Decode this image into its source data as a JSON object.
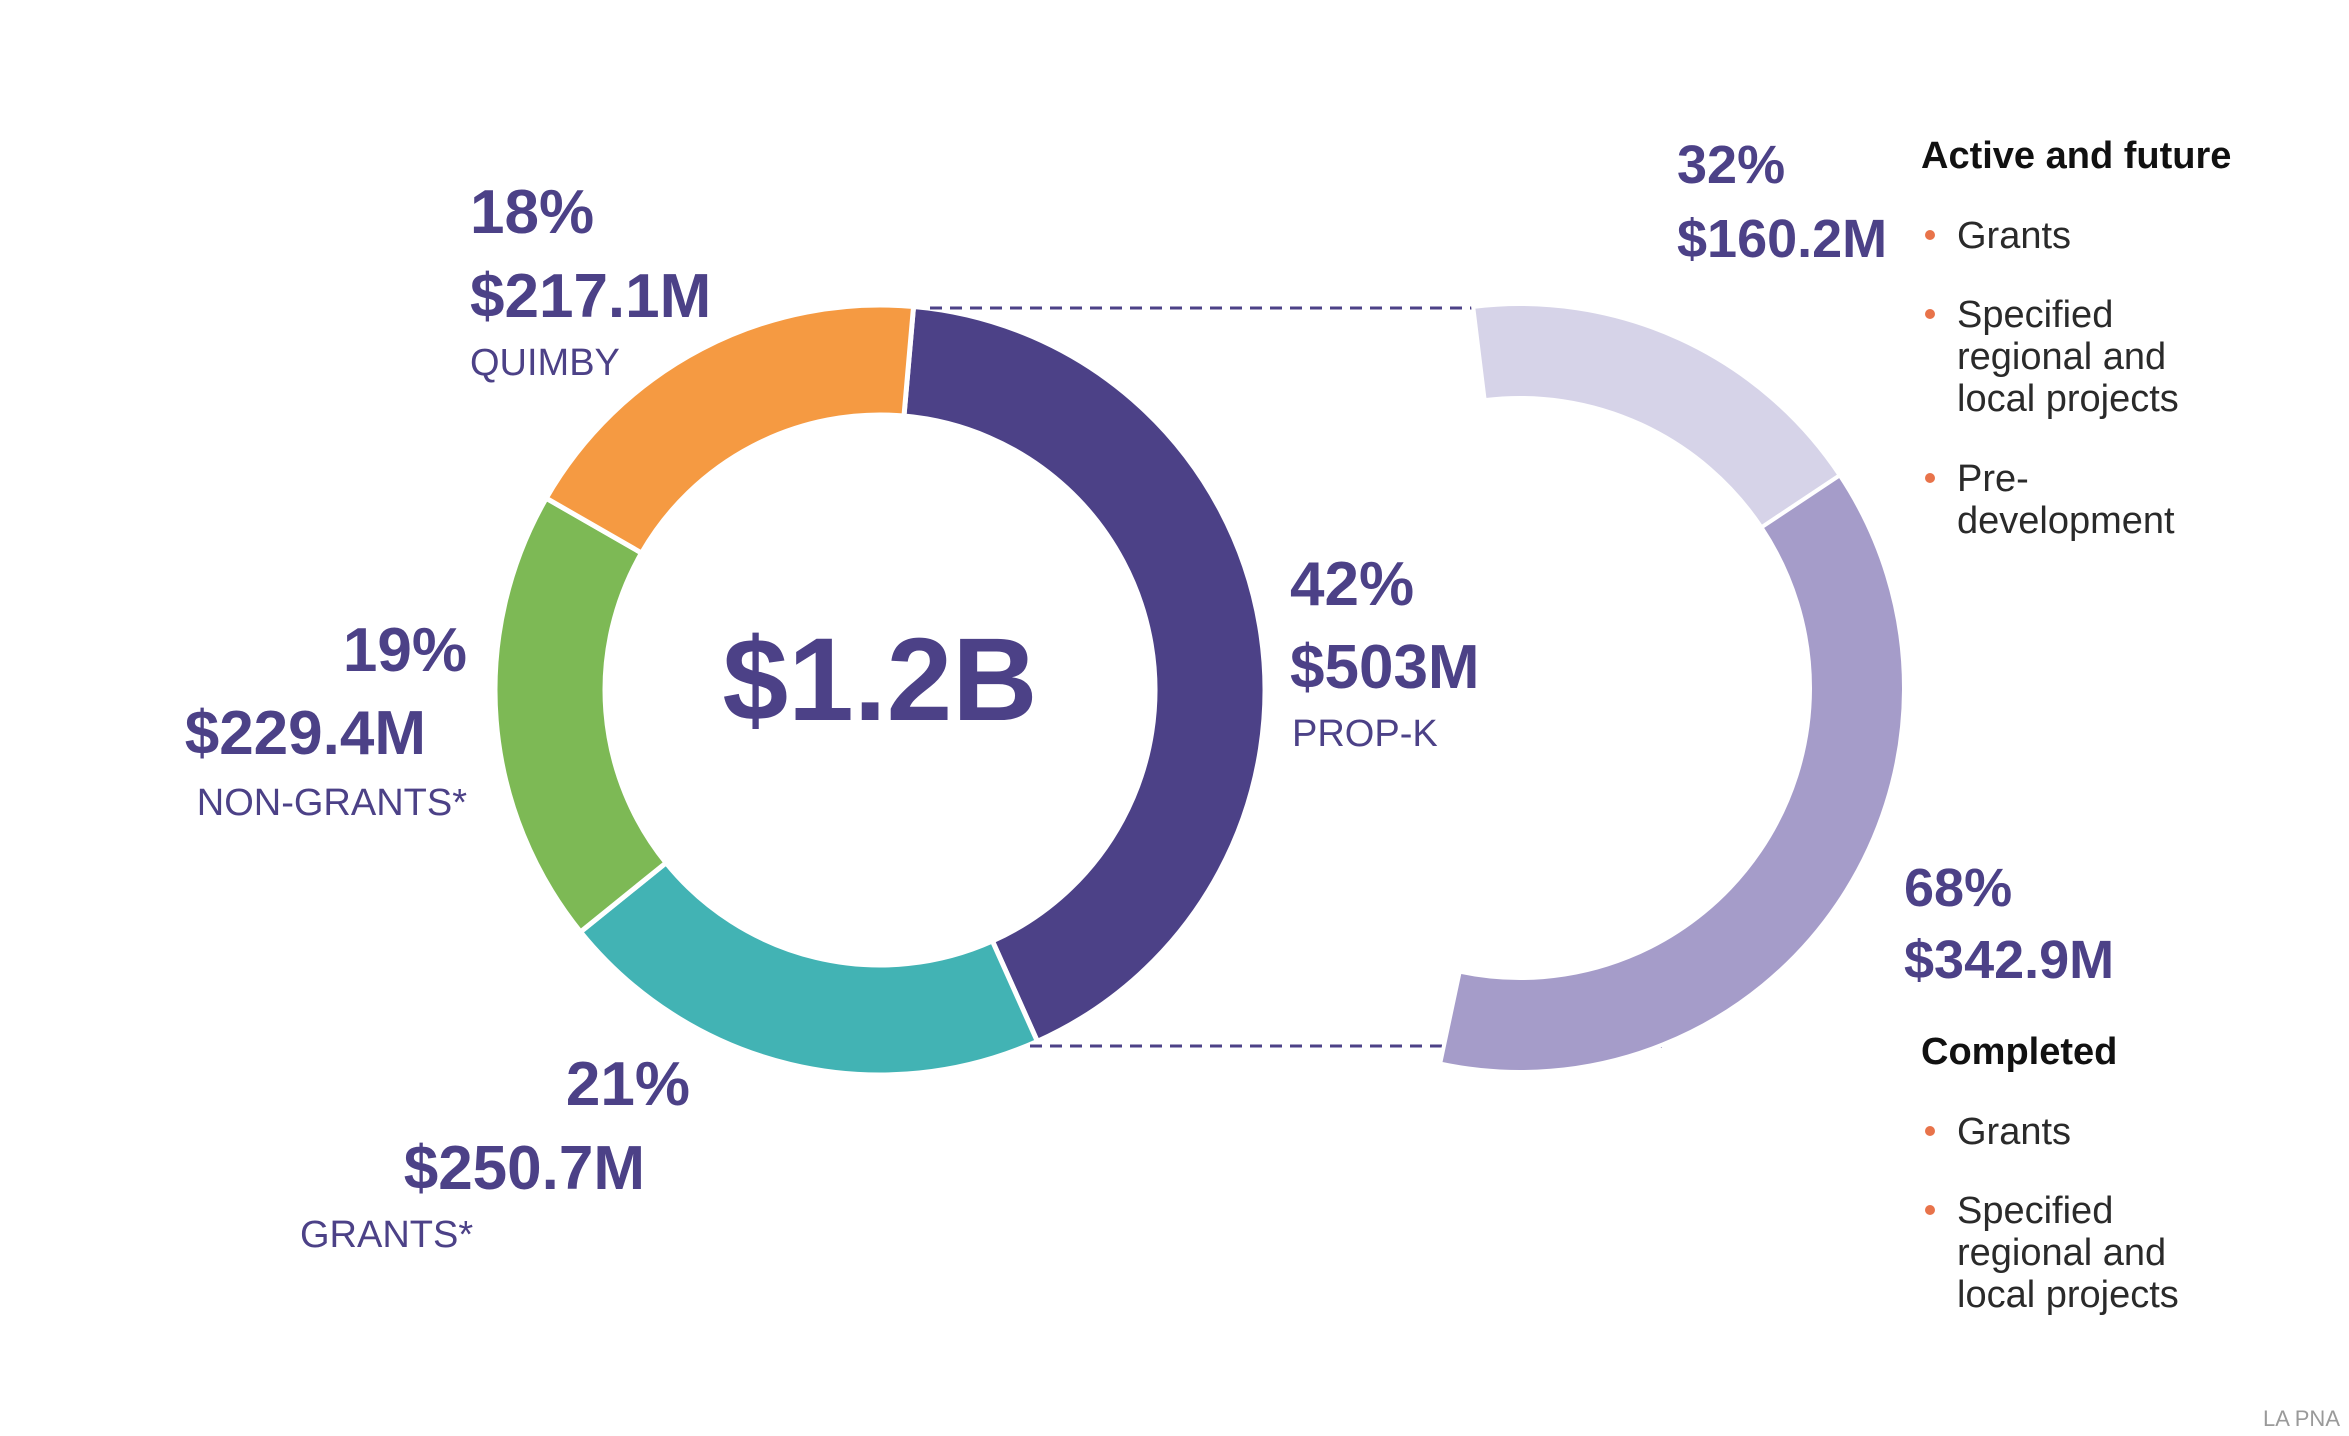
{
  "chart_data": [
    {
      "type": "pie",
      "variant": "donut",
      "total_label": "$1.2B",
      "slices": [
        {
          "name": "PROP-K",
          "percent": "42%",
          "value": 503,
          "value_label": "$503M",
          "color": "#4c4187"
        },
        {
          "name": "GRANTS*",
          "percent": "21%",
          "value": 250.7,
          "value_label": "$250.7M",
          "color": "#42b3b4"
        },
        {
          "name": "NON-GRANTS*",
          "percent": "19%",
          "value": 229.4,
          "value_label": "$229.4M",
          "color": "#7db955"
        },
        {
          "name": "QUIMBY",
          "percent": "18%",
          "value": 217.1,
          "value_label": "$217.1M",
          "color": "#f59a42"
        }
      ]
    },
    {
      "type": "pie",
      "variant": "arc-breakdown",
      "breakdown_of": "PROP-K",
      "slices": [
        {
          "percent": "32%",
          "value": 160.2,
          "value_label": "$160.2M",
          "color": "#d6d3e8",
          "heading": "Active and future",
          "items": [
            "Grants",
            "Specified regional and local projects",
            "Pre-development"
          ]
        },
        {
          "percent": "68%",
          "value": 342.9,
          "value_label": "$342.9M",
          "color": "#a59cc9",
          "heading": "Completed",
          "items": [
            "Grants",
            "Specified regional and local projects"
          ]
        }
      ]
    }
  ],
  "connector_color": "#4c4187",
  "bullet_color": "#e8734a",
  "source": "LA PNA"
}
